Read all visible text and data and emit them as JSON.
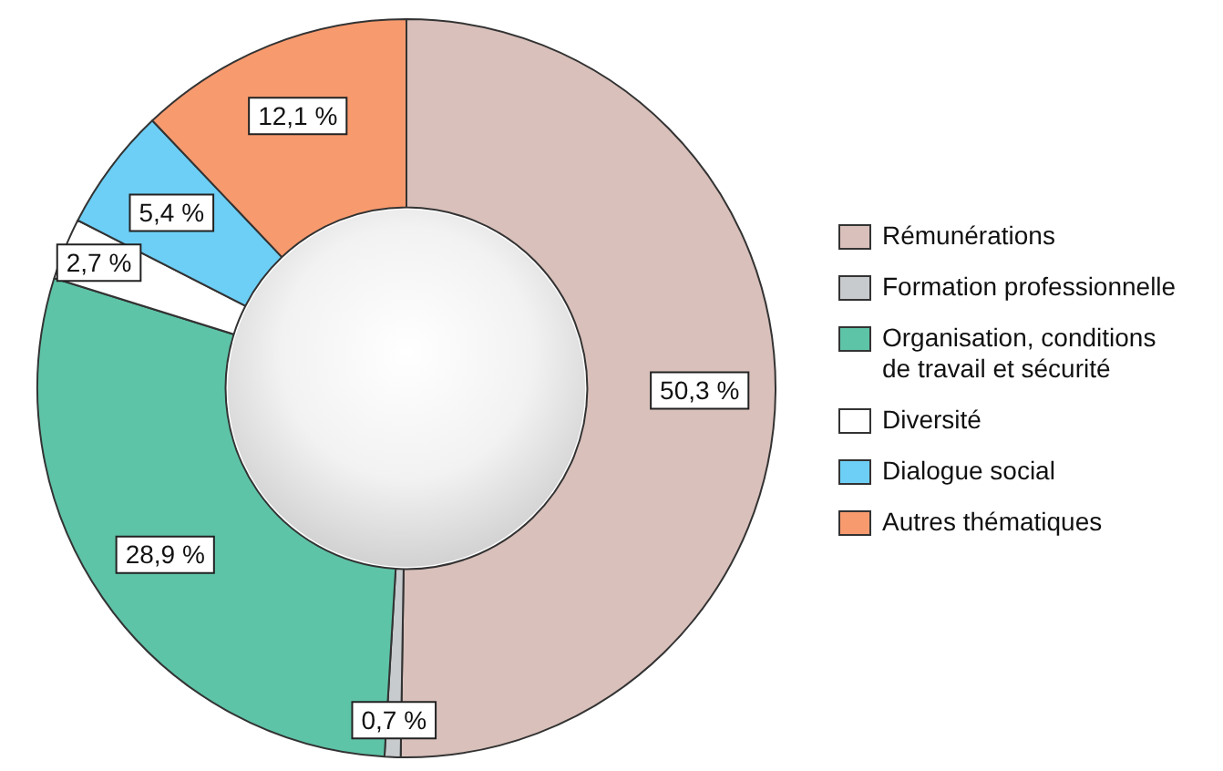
{
  "chart_data": {
    "type": "donut",
    "categories": [
      "Rémunérations",
      "Formation professionnelle",
      "Organisation, conditions de travail et sécurité",
      "Diversité",
      "Dialogue social",
      "Autres thématiques"
    ],
    "values": [
      50.3,
      0.7,
      28.9,
      2.7,
      5.4,
      12.1
    ],
    "colors": [
      "#d9c0bb",
      "#c8cbcd",
      "#5ec4a8",
      "#ffffff",
      "#6dcff6",
      "#f79a6e"
    ],
    "value_labels": [
      "50,3 %",
      "0,7 %",
      "28,9 %",
      "2,7 %",
      "5,4 %",
      "12,1 %"
    ],
    "legend": "right"
  }
}
